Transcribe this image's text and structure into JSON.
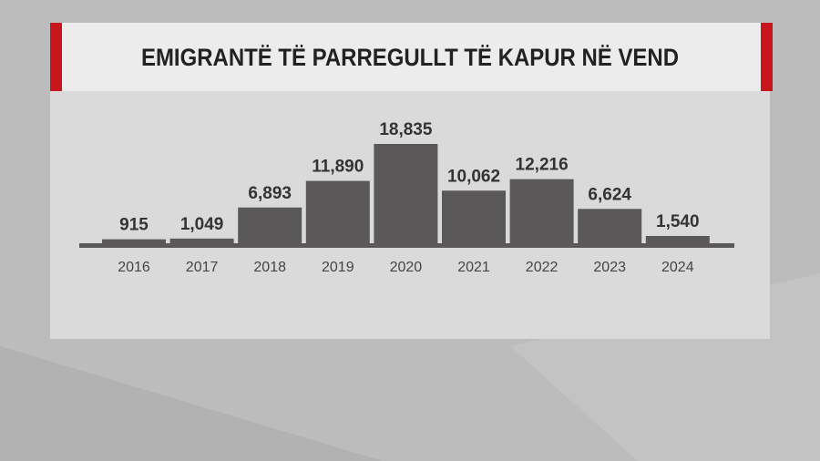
{
  "chart_data": {
    "type": "bar",
    "title": "EMIGRANTË TË PARREGULLT TË KAPUR NË VEND",
    "categories": [
      "2016",
      "2017",
      "2018",
      "2019",
      "2020",
      "2021",
      "2022",
      "2023",
      "2024"
    ],
    "values": [
      915,
      1049,
      6893,
      11890,
      18835,
      10062,
      12216,
      6624,
      1540
    ],
    "value_labels": [
      "915",
      "1,049",
      "6,893",
      "11,890",
      "18,835",
      "10,062",
      "12,216",
      "6,624",
      "1,540"
    ],
    "color": "#5a5859"
  }
}
